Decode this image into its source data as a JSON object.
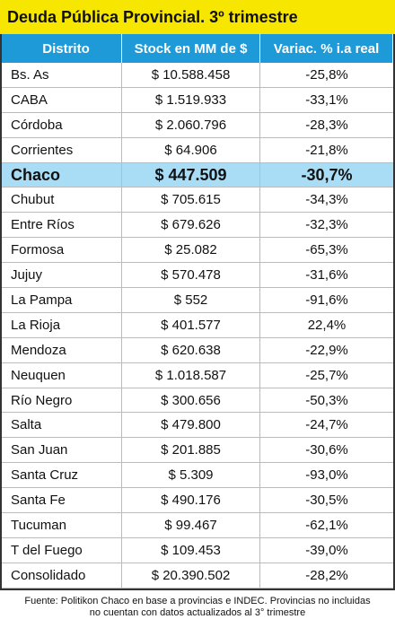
{
  "title": "Deuda Pública Provincial. 3º trimestre",
  "table": {
    "header": [
      "Distrito",
      "Stock en MM de $",
      "Variac. % i.a real"
    ],
    "highlight_row": 4,
    "rows": [
      [
        "Bs. As",
        "$ 10.588.458",
        "-25,8%"
      ],
      [
        "CABA",
        "$ 1.519.933",
        "-33,1%"
      ],
      [
        "Córdoba",
        "$ 2.060.796",
        "-28,3%"
      ],
      [
        "Corrientes",
        "$ 64.906",
        "-21,8%"
      ],
      [
        "Chaco",
        "$ 447.509",
        "-30,7%"
      ],
      [
        "Chubut",
        "$ 705.615",
        "-34,3%"
      ],
      [
        "Entre Ríos",
        "$ 679.626",
        "-32,3%"
      ],
      [
        "Formosa",
        "$ 25.082",
        "-65,3%"
      ],
      [
        "Jujuy",
        "$ 570.478",
        "-31,6%"
      ],
      [
        "La Pampa",
        "$ 552",
        "-91,6%"
      ],
      [
        "La Rioja",
        "$ 401.577",
        "22,4%"
      ],
      [
        "Mendoza",
        "$ 620.638",
        "-22,9%"
      ],
      [
        "Neuquen",
        "$ 1.018.587",
        "-25,7%"
      ],
      [
        "Río Negro",
        "$ 300.656",
        "-50,3%"
      ],
      [
        "Salta",
        "$ 479.800",
        "-24,7%"
      ],
      [
        "San Juan",
        "$ 201.885",
        "-30,6%"
      ],
      [
        "Santa Cruz",
        "$ 5.309",
        "-93,0%"
      ],
      [
        "Santa Fe",
        "$ 490.176",
        "-30,5%"
      ],
      [
        "Tucuman",
        "$ 99.467",
        "-62,1%"
      ],
      [
        "T del Fuego",
        "$ 109.453",
        "-39,0%"
      ],
      [
        "Consolidado",
        "$ 20.390.502",
        "-28,2%"
      ]
    ]
  },
  "footer": [
    "Fuente: Politikon Chaco en base a provincias e INDEC. Provincias no incluidas",
    "no cuentan con datos actualizados al 3° trimestre"
  ]
}
